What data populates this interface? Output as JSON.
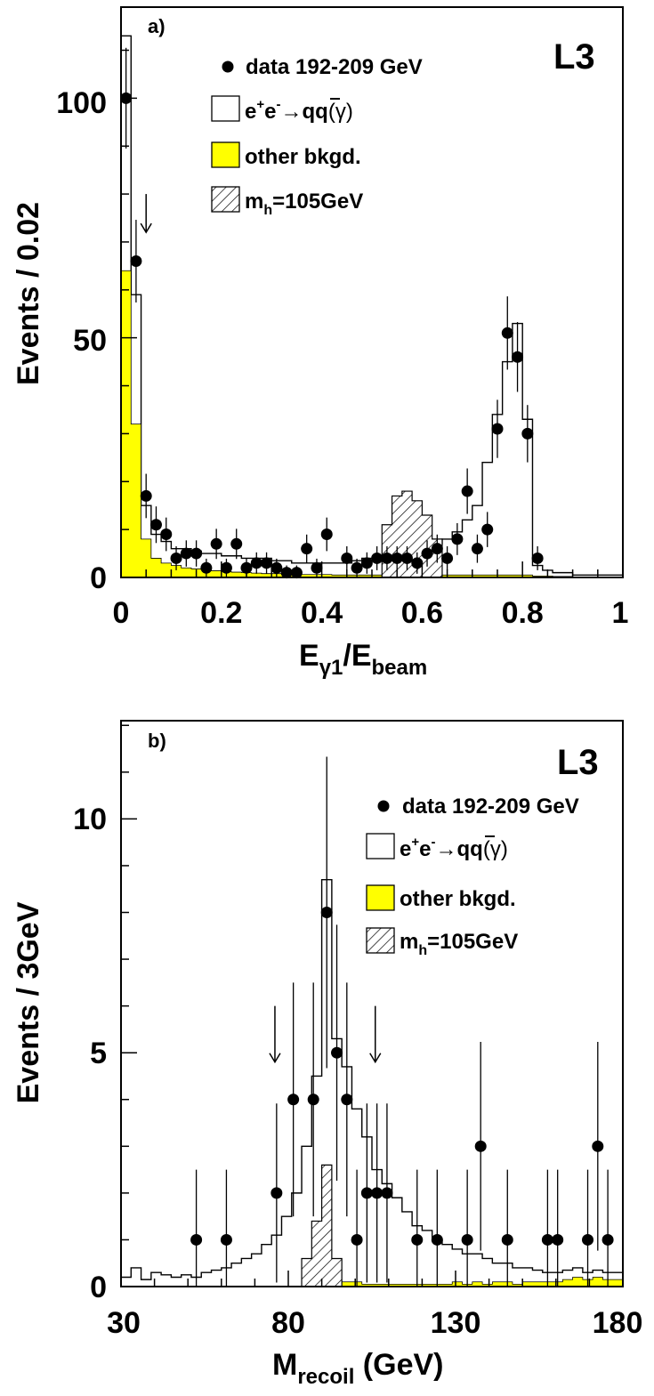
{
  "colors": {
    "other_bkgd": "#ffff00",
    "stroke": "#000000",
    "background": "#ffffff"
  },
  "panels": [
    {
      "tag": "a)",
      "experiment": "L3",
      "xlabel": {
        "main": "E",
        "sub1": "γ1",
        "mid": "/E",
        "sub2": "beam"
      },
      "ylabel": "Events / 0.02",
      "xticks": [
        "0",
        "0.2",
        "0.4",
        "0.6",
        "0.8",
        "1"
      ],
      "yticks": [
        "0",
        "50",
        "100"
      ],
      "legend": {
        "data": "data 192-209 GeV",
        "qq": {
          "e1": "e",
          "sup1": "+",
          "e2": "e",
          "sup2": "-",
          "arrow": "→",
          "q1": "q",
          "q2": "q",
          "tail": "(γ)"
        },
        "other": "other bkgd.",
        "higgs": {
          "m": "m",
          "sub": "h",
          "rest": "=105GeV"
        }
      }
    },
    {
      "tag": "b)",
      "experiment": "L3",
      "xlabel": {
        "main": "M",
        "sub": "recoil",
        "rest": " (GeV)"
      },
      "ylabel": "Events / 3GeV",
      "xticks": [
        "30",
        "80",
        "130",
        "180"
      ],
      "yticks": [
        "0",
        "5",
        "10"
      ],
      "legend": {
        "data": "data 192-209 GeV",
        "qq": {
          "e1": "e",
          "sup1": "+",
          "e2": "e",
          "sup2": "-",
          "arrow": "→",
          "q1": "q",
          "q2": "q",
          "tail": "(γ)"
        },
        "other": "other bkgd.",
        "higgs": {
          "m": "m",
          "sub": "h",
          "rest": "=105GeV"
        }
      }
    }
  ],
  "chart_data": [
    {
      "type": "histogram",
      "title": "a)",
      "xlabel": "Eγ1/Ebeam",
      "ylabel": "Events / 0.02",
      "xlim": [
        0,
        1
      ],
      "ylim": [
        0,
        119
      ],
      "bin_width": 0.02,
      "legend": "top-right",
      "series": [
        {
          "name": "e+e-→qq(γ)",
          "style": "open-histogram",
          "x_edges": [
            0,
            0.02,
            0.04,
            0.06,
            0.08,
            0.1,
            0.12,
            0.14,
            0.16,
            0.18,
            0.2,
            0.22,
            0.24,
            0.26,
            0.28,
            0.3,
            0.32,
            0.34,
            0.36,
            0.38,
            0.4,
            0.42,
            0.44,
            0.46,
            0.48,
            0.5,
            0.52,
            0.54,
            0.56,
            0.58,
            0.6,
            0.62,
            0.64,
            0.66,
            0.68,
            0.7,
            0.72,
            0.74,
            0.76,
            0.78,
            0.8,
            0.82,
            0.84,
            0.86,
            0.88,
            0.9,
            0.92,
            0.94,
            0.96,
            0.98,
            1.0
          ],
          "values": [
            113,
            59,
            15,
            9,
            7.5,
            6,
            6,
            5.5,
            5,
            5,
            4.5,
            4.5,
            4,
            4,
            4,
            3.5,
            3.5,
            3,
            3,
            3,
            3,
            3,
            3,
            3.5,
            4,
            4,
            4.5,
            5,
            5.5,
            6,
            6.5,
            7,
            8,
            9.5,
            12,
            15,
            24,
            34,
            45,
            53,
            33,
            2.5,
            1.5,
            1,
            1,
            0.5,
            0.5,
            0.5,
            0.5,
            0.5
          ]
        },
        {
          "name": "other bkgd.",
          "style": "filled-yellow",
          "x_edges": [
            0,
            0.02,
            0.04,
            0.06,
            0.08,
            0.1,
            0.12,
            0.14,
            0.16,
            0.18,
            0.2,
            0.22,
            0.24,
            0.26,
            0.28,
            0.3,
            0.32,
            0.34,
            0.36,
            0.38,
            0.4,
            0.42,
            0.44,
            0.46,
            0.48,
            0.5,
            0.52,
            0.54,
            0.56,
            0.58,
            0.6,
            0.62,
            0.64,
            0.66,
            0.68,
            0.7,
            0.72,
            0.74,
            0.76,
            0.78,
            0.8,
            0.82,
            0.84,
            0.86,
            0.88,
            0.9,
            0.92,
            0.94,
            0.96,
            0.98,
            1.0
          ],
          "values": [
            64,
            32,
            8,
            4,
            3,
            2.5,
            2,
            1.8,
            1.6,
            1.4,
            1.2,
            1.1,
            1,
            0.9,
            0.8,
            0.8,
            0.7,
            0.7,
            0.6,
            0.6,
            0.6,
            0.5,
            0.5,
            0.5,
            0.5,
            0.5,
            0.5,
            0.5,
            0.5,
            0.5,
            0.5,
            0.5,
            0.5,
            0.5,
            0.5,
            0.5,
            0.5,
            0.5,
            0.5,
            0.5,
            0.5,
            0.3,
            0.3,
            0.2,
            0.2,
            0.1,
            0.1,
            0.1,
            0.1,
            0.1
          ]
        },
        {
          "name": "mh=105GeV",
          "style": "hatched",
          "x_edges": [
            0.52,
            0.54,
            0.56,
            0.58,
            0.6,
            0.62,
            0.64
          ],
          "values": [
            11,
            17,
            18,
            16,
            13,
            8
          ]
        },
        {
          "name": "data 192-209 GeV",
          "style": "points-with-errors",
          "x": [
            0.01,
            0.03,
            0.05,
            0.07,
            0.09,
            0.11,
            0.13,
            0.15,
            0.17,
            0.19,
            0.21,
            0.23,
            0.25,
            0.27,
            0.29,
            0.31,
            0.33,
            0.35,
            0.37,
            0.39,
            0.41,
            0.45,
            0.47,
            0.49,
            0.51,
            0.53,
            0.55,
            0.57,
            0.59,
            0.61,
            0.63,
            0.65,
            0.67,
            0.69,
            0.71,
            0.73,
            0.75,
            0.77,
            0.79,
            0.81,
            0.83
          ],
          "y": [
            100,
            66,
            17,
            11,
            9,
            4,
            5,
            5,
            2,
            7,
            2,
            7,
            2,
            3,
            3,
            2,
            1,
            1,
            6,
            2,
            9,
            4,
            2,
            3,
            4,
            4,
            4,
            4,
            3,
            5,
            6,
            4,
            8,
            18,
            6,
            10,
            31,
            51,
            46,
            30,
            4
          ]
        }
      ],
      "annotations": [
        {
          "type": "arrow-down",
          "x": 0.05,
          "y_from": 80,
          "y_to": 72
        }
      ]
    },
    {
      "type": "histogram",
      "title": "b)",
      "xlabel": "Mrecoil (GeV)",
      "ylabel": "Events / 3GeV",
      "xlim": [
        30,
        180
      ],
      "ylim": [
        0,
        12.1
      ],
      "bin_width": 3,
      "legend": "top-right",
      "series": [
        {
          "name": "e+e-→qq(γ)",
          "style": "open-histogram",
          "x_edges": [
            30,
            33,
            36,
            39,
            42,
            45,
            48,
            51,
            54,
            57,
            60,
            63,
            66,
            69,
            72,
            75,
            78,
            81,
            84,
            87,
            90,
            93,
            96,
            99,
            102,
            105,
            108,
            111,
            114,
            117,
            120,
            123,
            126,
            129,
            132,
            135,
            138,
            141,
            144,
            147,
            150,
            153,
            156,
            159,
            162,
            165,
            168,
            171,
            174,
            177,
            180
          ],
          "values": [
            0.2,
            0.4,
            0.15,
            0.3,
            0.25,
            0.2,
            0.25,
            0.2,
            0.3,
            0.35,
            0.4,
            0.5,
            0.6,
            0.7,
            0.9,
            1.1,
            1.5,
            2.0,
            3.0,
            4.5,
            8.7,
            5.3,
            4.7,
            3.8,
            3.2,
            2.5,
            2.2,
            1.9,
            1.6,
            1.3,
            1.2,
            1.0,
            0.9,
            0.8,
            0.7,
            0.7,
            0.6,
            0.5,
            0.5,
            0.4,
            0.4,
            0.35,
            0.3,
            0.3,
            0.35,
            0.4,
            0.3,
            0.35,
            0.3,
            0.3
          ]
        },
        {
          "name": "other bkgd.",
          "style": "filled-yellow",
          "x_edges": [
            30,
            33,
            36,
            39,
            42,
            45,
            48,
            51,
            54,
            57,
            60,
            63,
            66,
            69,
            72,
            75,
            78,
            81,
            84,
            87,
            90,
            93,
            96,
            99,
            102,
            105,
            108,
            111,
            114,
            117,
            120,
            123,
            126,
            129,
            132,
            135,
            138,
            141,
            144,
            147,
            150,
            153,
            156,
            159,
            162,
            165,
            168,
            171,
            174,
            177,
            180
          ],
          "values": [
            0,
            0,
            0,
            0,
            0,
            0,
            0,
            0,
            0,
            0,
            0,
            0,
            0,
            0,
            0,
            0,
            0,
            0,
            0,
            0.05,
            0.1,
            0.15,
            0.1,
            0.1,
            0.05,
            0.05,
            0.05,
            0.05,
            0.05,
            0.05,
            0.05,
            0.05,
            0.05,
            0.1,
            0.05,
            0.1,
            0.05,
            0.1,
            0.1,
            0.05,
            0.1,
            0.1,
            0.1,
            0.1,
            0.15,
            0.2,
            0.15,
            0.2,
            0.15,
            0.15
          ]
        },
        {
          "name": "mh=105GeV",
          "style": "hatched",
          "x_edges": [
            84,
            87,
            90,
            93,
            96
          ],
          "values": [
            0.6,
            1.4,
            2.6,
            0.6
          ]
        },
        {
          "name": "data 192-209 GeV",
          "style": "points-with-errors",
          "x": [
            52.5,
            61.5,
            76.5,
            81.5,
            87.5,
            91.5,
            94.5,
            97.5,
            100.5,
            103.5,
            106.5,
            109.5,
            118.5,
            124.5,
            133.5,
            137.5,
            145.5,
            157.5,
            160.5,
            169.5,
            172.5,
            175.5
          ],
          "y": [
            1,
            1,
            2,
            4,
            4,
            8,
            5,
            4,
            1,
            2,
            2,
            2,
            1,
            1,
            1,
            3,
            1,
            1,
            1,
            1,
            3,
            1
          ]
        }
      ],
      "annotations": [
        {
          "type": "arrow-down",
          "x": 76,
          "y_from": 6.0,
          "y_to": 4.8
        },
        {
          "type": "arrow-down",
          "x": 106,
          "y_from": 6.0,
          "y_to": 4.8
        }
      ]
    }
  ]
}
